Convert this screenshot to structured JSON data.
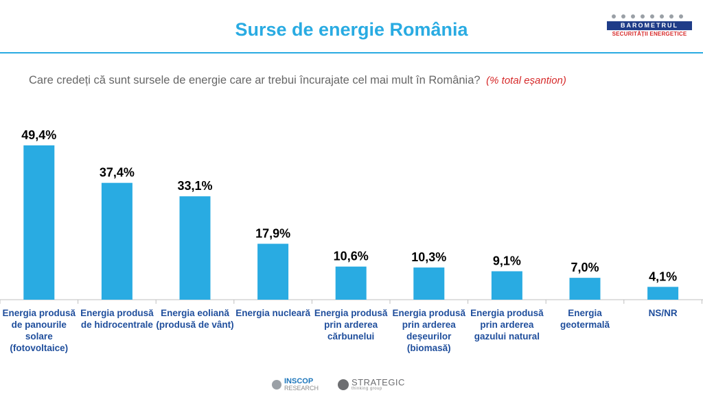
{
  "header": {
    "title": "Surse de energie România",
    "logo": {
      "name": "BAROMETRUL",
      "subtitle": "SECURITĂȚII ENERGETICE"
    }
  },
  "question": {
    "text": "Care credeți că sunt sursele de energie care ar trebui încurajate cel mai mult în România?",
    "note": "(% total eșantion)"
  },
  "chart_data": {
    "type": "bar",
    "title": "Surse de energie România",
    "categories": [
      "Energia produsă de panourile solare (fotovoltaice)",
      "Energia produsă de hidrocentrale",
      "Energia eoliană (produsă de vânt)",
      "Energia nucleară",
      "Energia produsă prin arderea cărbunelui",
      "Energia produsă prin arderea deșeurilor (biomasă)",
      "Energia produsă prin arderea gazului natural",
      "Energia geotermală",
      "NS/NR"
    ],
    "values": [
      49.4,
      37.4,
      33.1,
      17.9,
      10.6,
      10.3,
      9.1,
      7.0,
      4.1
    ],
    "value_labels": [
      "49,4%",
      "37,4%",
      "33,1%",
      "17,9%",
      "10,6%",
      "10,3%",
      "9,1%",
      "7,0%",
      "4,1%"
    ],
    "xlabel": "",
    "ylabel": "% total eșantion",
    "ylim": [
      0,
      55
    ],
    "bar_color": "#29abe2",
    "grid": false
  },
  "footer": {
    "logo1": {
      "name": "INSCOP",
      "sub": "RESEARCH"
    },
    "logo2": {
      "name": "STRATEGIC",
      "sub": "thinking group"
    }
  },
  "colors": {
    "accent": "#29abe2",
    "note": "#d62a2a",
    "category_text": "#1f4e9c"
  }
}
